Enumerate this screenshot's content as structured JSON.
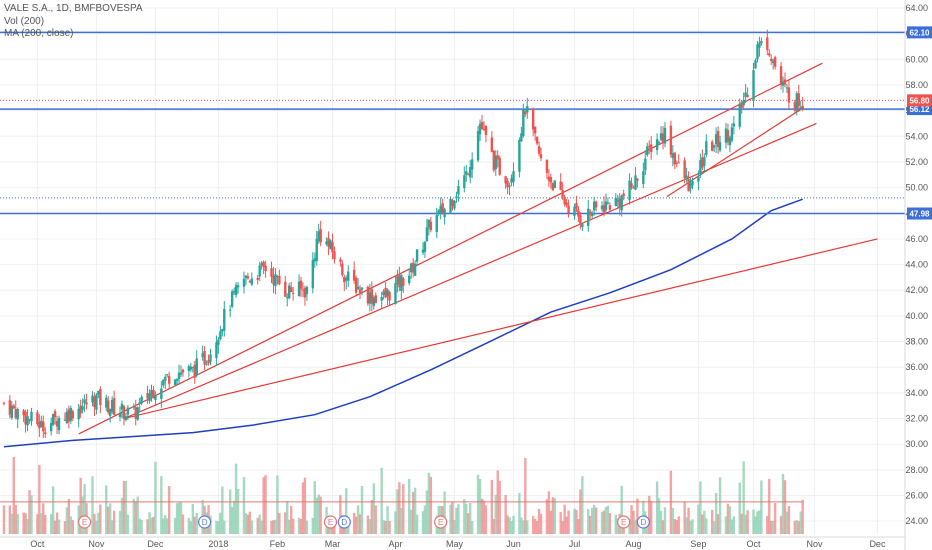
{
  "legend": {
    "title": "VALE S.A., 1D, BMFBOVESPA",
    "vol": "Vol (200)",
    "ma": "MA (200, close)"
  },
  "colors": {
    "up": "#8fd0b1",
    "down": "#ef8e8e",
    "candle_up": "#26a69a",
    "candle_down": "#ef5350",
    "ma_line": "#1e3fbf",
    "level_line": "#3d6fd6",
    "trend_line": "#e53935",
    "current_price": "#ef5350",
    "grid": "#eef0f3"
  },
  "chart_data": {
    "type": "candlestick",
    "y_axis": {
      "min": 23.0,
      "max": 64.0,
      "ticks": [
        "24.00",
        "26.00",
        "28.00",
        "30.00",
        "32.00",
        "34.00",
        "36.00",
        "38.00",
        "40.00",
        "42.00",
        "44.00",
        "46.00",
        "48.00",
        "50.00",
        "52.00",
        "54.00",
        "56.00",
        "58.00",
        "60.00",
        "62.00",
        "64.00"
      ]
    },
    "x_axis": {
      "labels": [
        {
          "label": "Oct",
          "date": "2017-10-02"
        },
        {
          "label": "Nov",
          "date": "2017-11-01"
        },
        {
          "label": "Dec",
          "date": "2017-12-01"
        },
        {
          "label": "2018",
          "date": "2018-01-02"
        },
        {
          "label": "Feb",
          "date": "2018-02-01"
        },
        {
          "label": "Mar",
          "date": "2018-03-01"
        },
        {
          "label": "Apr",
          "date": "2018-04-02"
        },
        {
          "label": "May",
          "date": "2018-05-02"
        },
        {
          "label": "Jun",
          "date": "2018-06-01"
        },
        {
          "label": "Jul",
          "date": "2018-07-02"
        },
        {
          "label": "Aug",
          "date": "2018-08-01"
        },
        {
          "label": "Sep",
          "date": "2018-09-03"
        },
        {
          "label": "Oct",
          "date": "2018-10-01"
        },
        {
          "label": "Nov",
          "date": "2018-11-01"
        },
        {
          "label": "Dec",
          "date": "2018-12-03"
        }
      ]
    },
    "price_path": [
      [
        "2017-09-15",
        33.2
      ],
      [
        "2017-09-25",
        32.2
      ],
      [
        "2017-10-05",
        31.4
      ],
      [
        "2017-10-20",
        32.6
      ],
      [
        "2017-11-01",
        33.6
      ],
      [
        "2017-11-10",
        32.8
      ],
      [
        "2017-11-20",
        32.3
      ],
      [
        "2017-11-28",
        34.0
      ],
      [
        "2017-12-10",
        35.6
      ],
      [
        "2017-12-20",
        35.7
      ],
      [
        "2017-12-28",
        37.0
      ],
      [
        "2018-01-08",
        41.0
      ],
      [
        "2018-01-15",
        42.8
      ],
      [
        "2018-01-26",
        43.7
      ],
      [
        "2018-02-05",
        42.0
      ],
      [
        "2018-02-16",
        42.0
      ],
      [
        "2018-02-22",
        46.5
      ],
      [
        "2018-03-01",
        45.0
      ],
      [
        "2018-03-08",
        43.0
      ],
      [
        "2018-03-20",
        41.5
      ],
      [
        "2018-03-28",
        41.5
      ],
      [
        "2018-04-10",
        43.5
      ],
      [
        "2018-04-20",
        47.2
      ],
      [
        "2018-04-28",
        48.5
      ],
      [
        "2018-05-08",
        51.0
      ],
      [
        "2018-05-15",
        55.0
      ],
      [
        "2018-05-22",
        52.0
      ],
      [
        "2018-05-30",
        50.5
      ],
      [
        "2018-06-07",
        56.2
      ],
      [
        "2018-06-15",
        52.0
      ],
      [
        "2018-06-25",
        49.2
      ],
      [
        "2018-07-05",
        47.6
      ],
      [
        "2018-07-15",
        48.5
      ],
      [
        "2018-07-25",
        49.0
      ],
      [
        "2018-08-01",
        50.2
      ],
      [
        "2018-08-10",
        53.3
      ],
      [
        "2018-08-17",
        54.3
      ],
      [
        "2018-08-24",
        51.5
      ],
      [
        "2018-08-31",
        49.8
      ],
      [
        "2018-09-07",
        53.0
      ],
      [
        "2018-09-14",
        53.8
      ],
      [
        "2018-09-21",
        54.6
      ],
      [
        "2018-09-28",
        57.7
      ],
      [
        "2018-10-03",
        61.0
      ],
      [
        "2018-10-08",
        61.3
      ],
      [
        "2018-10-15",
        58.0
      ],
      [
        "2018-10-22",
        56.7
      ],
      [
        "2018-10-26",
        56.8
      ]
    ],
    "moving_average": [
      [
        "2017-09-15",
        29.8
      ],
      [
        "2017-10-20",
        30.3
      ],
      [
        "2017-11-20",
        30.6
      ],
      [
        "2017-12-20",
        30.9
      ],
      [
        "2018-01-20",
        31.5
      ],
      [
        "2018-02-20",
        32.3
      ],
      [
        "2018-03-20",
        33.7
      ],
      [
        "2018-04-20",
        35.8
      ],
      [
        "2018-05-20",
        38.0
      ],
      [
        "2018-06-20",
        40.3
      ],
      [
        "2018-07-20",
        41.8
      ],
      [
        "2018-08-20",
        43.6
      ],
      [
        "2018-09-20",
        46.0
      ],
      [
        "2018-10-10",
        48.2
      ],
      [
        "2018-10-26",
        49.1
      ]
    ],
    "horizontal_levels": [
      {
        "price": 62.1,
        "label": "62.10",
        "style": "solid",
        "tag_color": "#3d6fd6"
      },
      {
        "price": 56.12,
        "label": "56.12",
        "style": "solid",
        "tag_color": "#3d6fd6"
      },
      {
        "price": 47.98,
        "label": "47.98",
        "style": "solid",
        "tag_color": "#3d6fd6"
      },
      {
        "price": 49.2,
        "label": "",
        "style": "dotted",
        "tag_color": ""
      },
      {
        "price": 56.8,
        "label": "56.80",
        "style": "dotted",
        "tag_color": "#ef5350"
      }
    ],
    "trend_lines": [
      {
        "from": [
          "2017-10-23",
          30.8
        ],
        "to": [
          "2018-11-05",
          59.7
        ]
      },
      {
        "from": [
          "2017-11-15",
          32.0
        ],
        "to": [
          "2018-11-02",
          55.0
        ]
      },
      {
        "from": [
          "2017-11-15",
          32.0
        ],
        "to": [
          "2018-12-03",
          46.0
        ]
      },
      {
        "from": [
          "2018-08-18",
          49.3
        ],
        "to": [
          "2018-10-25",
          56.1
        ]
      }
    ],
    "volume_baseline_ma": 25.5,
    "events": [
      {
        "label": "E",
        "date": "2017-10-26",
        "kind": "earnings"
      },
      {
        "label": "D",
        "date": "2017-12-26",
        "kind": "dividend"
      },
      {
        "label": "E",
        "date": "2018-02-28",
        "kind": "earnings"
      },
      {
        "label": "D",
        "date": "2018-03-07",
        "kind": "dividend"
      },
      {
        "label": "E",
        "date": "2018-04-25",
        "kind": "earnings"
      },
      {
        "label": "E",
        "date": "2018-07-27",
        "kind": "earnings"
      },
      {
        "label": "D",
        "date": "2018-08-06",
        "kind": "dividend"
      }
    ]
  }
}
